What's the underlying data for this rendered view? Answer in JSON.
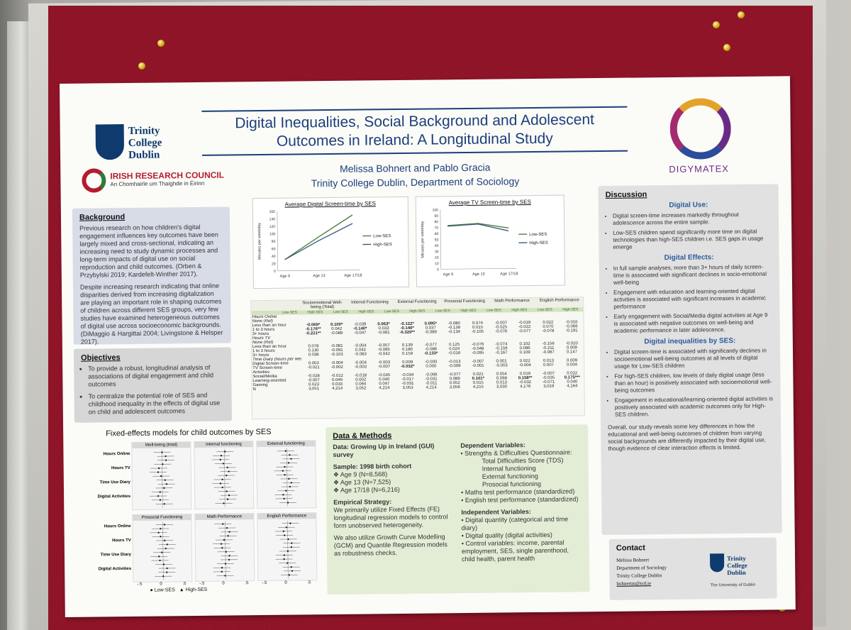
{
  "poster": {
    "title_line1": "Digital Inequalities, Social Background and Adolescent",
    "title_line2": "Outcomes in Ireland: A Longitudinal Study",
    "authors": "Melissa Bohnert and Pablo Gracia",
    "affiliation": "Trinity College Dublin, Department of Sociology",
    "tcd_logo": [
      "Trinity",
      "College",
      "Dublin"
    ],
    "irc_name": "IRISH RESEARCH COUNCIL",
    "irc_sub": "An Chomhairle um Thaighde in Éirinn",
    "digy_logo": "DIGYMATEX"
  },
  "background": {
    "heading": "Background",
    "p1": "Previous research on how children's digital engagement influences key outcomes have been largely mixed and cross-sectional, indicating an increasing need to study dynamic processes and long-term impacts of digital use on social reproduction and child outcomes. (Orben & Przybylski 2019; Kardefelt-Winther 2017).",
    "p2": "Despite increasing research indicating that online disparities derived from increasing digitalization are playing an important role in shaping outcomes of children across different SES groups, very few studies have examined heterogeneous outcomes of digital use across socioeconomic backgrounds. (DiMaggio & Hargittai 2004; Livingstone & Helsper 2017)."
  },
  "objectives": {
    "heading": "Objectives",
    "items": [
      "To provide a robust, longitudinal analysis of associations of digital engagement and child outcomes",
      "To centralize the potential role of SES and childhood inequality in the effects of digital use on child and adolescent outcomes"
    ]
  },
  "chart_data": [
    {
      "type": "line",
      "title": "Average Digital Screen-time by SES",
      "ylabel": "Minutes per weekday",
      "categories": [
        "Age 9",
        "Age 13",
        "Age 17/18"
      ],
      "ylim": [
        0,
        160
      ],
      "yticks": [
        "0",
        "20",
        "40",
        "60",
        "80",
        "100",
        "120",
        "140",
        "160"
      ],
      "series": [
        {
          "name": "Low-SES",
          "values": [
            30,
            90,
            148
          ],
          "color": "#4f7f3a"
        },
        {
          "name": "High-SES",
          "values": [
            30,
            80,
            125
          ],
          "color": "#3a5c80"
        }
      ]
    },
    {
      "type": "line",
      "title": "Average TV Screen-time by SES",
      "ylabel": "Minutes per weekday",
      "categories": [
        "Age 9",
        "Age 13",
        "Age 17/18"
      ],
      "ylim": [
        0,
        100
      ],
      "yticks": [
        "0",
        "10",
        "20",
        "30",
        "40",
        "50",
        "60",
        "70",
        "80",
        "90",
        "100"
      ],
      "series": [
        {
          "name": "Low-SES",
          "values": [
            73,
            76,
            68
          ],
          "color": "#4f7f3a"
        },
        {
          "name": "High-SES",
          "values": [
            72,
            75,
            63
          ],
          "color": "#3a5c80"
        }
      ]
    }
  ],
  "table": {
    "headers": [
      "",
      "Socioemotional Well-being (Total)",
      "Internal Functioning",
      "External Functioning",
      "Prosocial Functioning",
      "Math Performance",
      "English Performance"
    ],
    "rows": [
      [
        "Hours Online",
        "",
        "",
        "",
        "",
        "",
        "",
        "",
        "",
        "",
        "",
        "",
        ""
      ],
      [
        "None (Ref)",
        "",
        "",
        "",
        "",
        "",
        "",
        "",
        "",
        "",
        "",
        "",
        ""
      ],
      [
        "Less than an hour",
        "-0.069*",
        "0.100*",
        "-0.039",
        "0.063*",
        "-0.122*",
        "0.095*",
        "-0.080",
        "0.074",
        "-0.007",
        "-0.019",
        "0.022",
        "-0.016"
      ],
      [
        "1 to 3 hours",
        "-0.176**",
        "0.042",
        "-0.140*",
        "0.033",
        "-0.140*",
        "0.037",
        "-0.139",
        "0.015",
        "-0.025",
        "-0.022",
        "0.070",
        "-0.066"
      ],
      [
        "3+ hours",
        "-0.221**",
        "-0.089",
        "-0.047",
        "-0.061",
        "-0.320**",
        "-0.089",
        "-0.134",
        "-0.105",
        "-0.076",
        "-0.077",
        "-0.078",
        "-0.191"
      ],
      [
        "Hours TV",
        "",
        "",
        "",
        "",
        "",
        "",
        "",
        "",
        "",
        "",
        "",
        ""
      ],
      [
        "None (Ref)",
        "",
        "",
        "",
        "",
        "",
        "",
        "",
        "",
        "",
        "",
        "",
        ""
      ],
      [
        "Less than an hour",
        "0.078",
        "-0.081",
        "-0.004",
        "-0.057",
        "0.139",
        "-0.077",
        "0.125",
        "-0.076",
        "-0.074",
        "0.102",
        "-0.156",
        "-0.020"
      ],
      [
        "1 to 3 hours",
        "0.130",
        "-0.091",
        "0.043",
        "-0.065",
        "0.180",
        "-0.086",
        "0.024",
        "-0.048",
        "-0.159",
        "0.096",
        "-0.211",
        "0.009"
      ],
      [
        "3+ hours",
        "0.038",
        "-0.103",
        "-0.083",
        "-0.042",
        "0.159",
        "-0.133*",
        "-0.016",
        "-0.095",
        "-0.167",
        "0.109",
        "-0.087",
        "0.147"
      ],
      [
        "Time Diary (hours per weekday)",
        "",
        "",
        "",
        "",
        "",
        "",
        "",
        "",
        "",
        "",
        "",
        ""
      ],
      [
        "Digital Screen-time",
        "0.003",
        "-0.004",
        "-0.004",
        "-0.003",
        "0.009",
        "-0.000",
        "-0.013",
        "-0.007",
        "0.001",
        "0.022",
        "0.013",
        "0.009"
      ],
      [
        "TV Screen-time",
        "-0.021",
        "-0.002",
        "-0.003",
        "-0.007",
        "-0.032*",
        "0.000",
        "-0.009",
        "-0.001",
        "-0.003",
        "-0.004",
        "0.007",
        "0.004"
      ],
      [
        "Activities",
        "",
        "",
        "",
        "",
        "",
        "",
        "",
        "",
        "",
        "",
        "",
        ""
      ],
      [
        "Social/Media",
        "-0.028",
        "-0.012",
        "-0.018",
        "-0.045",
        "-0.034",
        "-0.006",
        "-0.077",
        "0.021",
        "0.054",
        "0.019",
        "-0.007",
        "0.022"
      ],
      [
        "Learning-oriented",
        "-0.007",
        "0.046",
        "0.002",
        "0.040",
        "-0.017",
        "-0.031",
        "0.089",
        "0.101*",
        "0.068",
        "0.158**",
        "-0.035",
        "0.175***"
      ],
      [
        "Gaming",
        "0.023",
        "0.033",
        "0.064",
        "0.047",
        "-0.031",
        "-0.011",
        "0.052",
        "0.015",
        "0.013",
        "-0.032",
        "-0.071",
        "0.040"
      ],
      [
        "N",
        "3,051",
        "4,214",
        "3,052",
        "4,214",
        "3,053",
        "4,214",
        "3,056",
        "4,215",
        "3,030",
        "4,176",
        "3,019",
        "4,164"
      ]
    ],
    "subheaders": [
      "Low-SES",
      "High-SES"
    ]
  },
  "fixed_effects": {
    "title": "Fixed-effects models for child outcomes by SES",
    "panels": [
      "Well-being (total)",
      "Internal functioning",
      "External functioning",
      "Prosocial Functioning",
      "Math Performance",
      "English Performance"
    ],
    "row_labels": [
      "Hours Online",
      "Hours TV",
      "Time Use Diary",
      "Digital Activities"
    ],
    "axis": [
      "-.5",
      "0",
      ".5"
    ],
    "legend": [
      "Low-SES",
      "High-SES"
    ]
  },
  "data_methods": {
    "heading": "Data & Methods",
    "data": "Data: Growing Up in Ireland (GUI) survey",
    "sample_label": "Sample: 1998 birth cohort",
    "sample_items": [
      "Age 9 (N=8,568)",
      "Age 13 (N=7,525)",
      "Age 17/18 (N=6,216)"
    ],
    "strategy_label": "Empirical Strategy:",
    "strategy": "We primarily utilize Fixed Effects (FE) longitudinal regression models to control form unobserved heterogeneity.",
    "also": "We also utilize Growth Curve Modelling (GCM) and Quantile Regression models as robustness checks.",
    "dep_label": "Dependent Variables:",
    "dep_items": [
      "Strengths & Difficulties Questionnaire:",
      "Total Difficulties Score (TDS)",
      "Internal functioning",
      "External functioning",
      "Prosocial functioning",
      "Maths test performance (standardized)",
      "English test performance (standardized)"
    ],
    "ind_label": "Independent Variables:",
    "ind_items": [
      "Digital quantity (categorical and time diary)",
      "Digital quality (digital activities)",
      "Control variables: income, parental employment, SES, single parenthood, child health, parent health"
    ]
  },
  "discussion": {
    "heading": "Discussion",
    "digital_use": "Digital Use:",
    "use_items": [
      "Digital screen-time increases markedly throughout adolescence across the entire sample.",
      "Low-SES children spend significantly more time on digital technologies than high-SES children i.e. SES gaps in usage emerge"
    ],
    "digital_effects": "Digital Effects:",
    "effects_items": [
      "In full sample analyses, more than 3+ hours of daily screen-time is associated with significant declines in socio-emotional well-being",
      "Engagement with education and learning-oriented digital activities is associated with significant increases in academic performance",
      "Early engagement with Social/Media digital activities at Age 9 is associated with negative outcomes on well-being and academic performance in later adolescence."
    ],
    "inequalities": "Digital inequalities by SES:",
    "ineq_items": [
      "Digital screen-time is associated with significantly declines in socioemotional well-being outcomes at all levels of digital usage for Low-SES children",
      "For high-SES children, low levels of daily digital usage (less than an hour) is positively associated with socioemotional well-being outcomes",
      "Engagement in educational/learning-oriented digital activities is positively associated with academic outcomes only for High-SES children."
    ],
    "overall": "Overall, our study reveals some key differences in how the educational and well-being outcomes of children from varying social backgrounds are differently impacted by their digital use, though evidence of clear interaction effects is limited."
  },
  "contact": {
    "heading": "Contact",
    "lines": [
      "Melissa Bohnert",
      "Department of Sociology",
      "Trinity College Dublin"
    ],
    "email": "bohnertm@tcd.ie",
    "logo": [
      "Trinity",
      "College",
      "Dublin"
    ],
    "logo_sub": "The University of Dublin"
  }
}
